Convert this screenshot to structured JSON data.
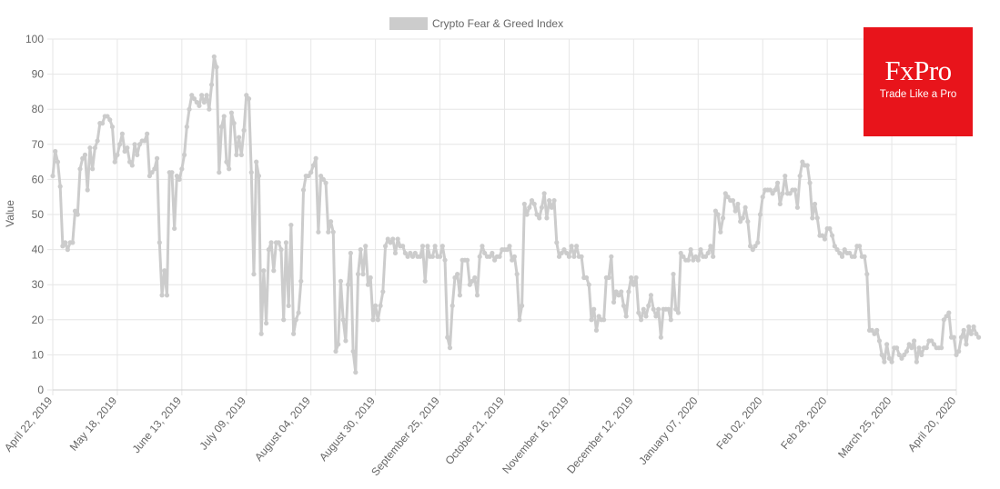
{
  "brand": {
    "name": "FxPro",
    "tagline": "Trade Like a Pro",
    "color": "#e8141b"
  },
  "chart_data": {
    "type": "line",
    "legend": {
      "label": "Crypto Fear & Greed Index",
      "position": "top-center",
      "color": "#cccccc"
    },
    "ylabel": "Value",
    "xlabel": "",
    "ylim": [
      0,
      100
    ],
    "yticks": [
      0,
      10,
      20,
      30,
      40,
      50,
      60,
      70,
      80,
      90,
      100
    ],
    "grid": true,
    "line_color": "#cccccc",
    "xticks": [
      {
        "label": "April 22, 2019",
        "x": 0
      },
      {
        "label": "May 18, 2019",
        "x": 26
      },
      {
        "label": "June 13, 2019",
        "x": 52
      },
      {
        "label": "July 09, 2019",
        "x": 78
      },
      {
        "label": "August 04, 2019",
        "x": 104
      },
      {
        "label": "August 30, 2019",
        "x": 130
      },
      {
        "label": "September 25, 2019",
        "x": 156
      },
      {
        "label": "October 21, 2019",
        "x": 182
      },
      {
        "label": "November 16, 2019",
        "x": 208
      },
      {
        "label": "December 12, 2019",
        "x": 234
      },
      {
        "label": "January 07, 2020",
        "x": 260
      },
      {
        "label": "Feb 02, 2020",
        "x": 286
      },
      {
        "label": "Feb 28, 2020",
        "x": 312
      },
      {
        "label": "March 25, 2020",
        "x": 338
      },
      {
        "label": "April 20, 2020",
        "x": 364
      }
    ],
    "series": [
      {
        "values": [
          61,
          68,
          65,
          58,
          41,
          42,
          40,
          42,
          42,
          51,
          50,
          63,
          66,
          67,
          57,
          69,
          63,
          69,
          71,
          76,
          76,
          78,
          78,
          77,
          75,
          65,
          67,
          70,
          73,
          68,
          69,
          65,
          64,
          70,
          67,
          70,
          71,
          71,
          73,
          61,
          62,
          63,
          66,
          42,
          27,
          34,
          27,
          62,
          62,
          46,
          61,
          60,
          63,
          67,
          75,
          80,
          84,
          83,
          82,
          81,
          84,
          82,
          84,
          80,
          87,
          95,
          92,
          62,
          75,
          78,
          65,
          63,
          79,
          76,
          67,
          72,
          67,
          74,
          84,
          83,
          62,
          33,
          65,
          61,
          16,
          34,
          19,
          40,
          42,
          34,
          42,
          42,
          40,
          20,
          42,
          24,
          47,
          16,
          20,
          22,
          31,
          57,
          61,
          61,
          62,
          64,
          66,
          45,
          61,
          60,
          59,
          45,
          48,
          45,
          11,
          13,
          31,
          20,
          14,
          30,
          39,
          11,
          5,
          33,
          40,
          33,
          41,
          30,
          32,
          20,
          24,
          20,
          24,
          28,
          41,
          43,
          42,
          43,
          39,
          43,
          41,
          41,
          39,
          38,
          39,
          38,
          39,
          38,
          38,
          41,
          31,
          41,
          38,
          38,
          41,
          38,
          38,
          41,
          37,
          15,
          12,
          24,
          32,
          33,
          27,
          37,
          37,
          37,
          30,
          31,
          32,
          27,
          38,
          41,
          39,
          38,
          38,
          39,
          37,
          38,
          38,
          40,
          40,
          40,
          41,
          37,
          38,
          33,
          20,
          24,
          53,
          50,
          52,
          54,
          53,
          50,
          49,
          52,
          56,
          49,
          54,
          52,
          54,
          42,
          38,
          39,
          40,
          39,
          38,
          41,
          38,
          41,
          38,
          38,
          32,
          32,
          30,
          20,
          23,
          17,
          21,
          20,
          20,
          32,
          32,
          38,
          25,
          28,
          27,
          28,
          24,
          21,
          28,
          32,
          30,
          32,
          22,
          20,
          23,
          21,
          24,
          27,
          23,
          21,
          23,
          15,
          23,
          23,
          23,
          20,
          33,
          23,
          22,
          39,
          38,
          37,
          37,
          40,
          37,
          38,
          37,
          40,
          38,
          38,
          39,
          41,
          38,
          51,
          50,
          45,
          49,
          56,
          55,
          54,
          54,
          51,
          53,
          48,
          49,
          52,
          48,
          41,
          40,
          41,
          42,
          50,
          55,
          57,
          57,
          57,
          56,
          57,
          59,
          53,
          56,
          61,
          56,
          56,
          57,
          57,
          52,
          61,
          65,
          64,
          64,
          59,
          49,
          53,
          49,
          44,
          44,
          43,
          46,
          46,
          44,
          41,
          40,
          39,
          38,
          40,
          39,
          39,
          38,
          38,
          41,
          41,
          38,
          38,
          33,
          17,
          17,
          16,
          17,
          14,
          10,
          8,
          13,
          9,
          8,
          12,
          12,
          10,
          9,
          10,
          11,
          13,
          12,
          14,
          8,
          12,
          10,
          12,
          12,
          14,
          14,
          13,
          12,
          12,
          12,
          20,
          21,
          22,
          15,
          15,
          10,
          11,
          15,
          17,
          13,
          18,
          16,
          18,
          16,
          15
        ]
      }
    ]
  }
}
